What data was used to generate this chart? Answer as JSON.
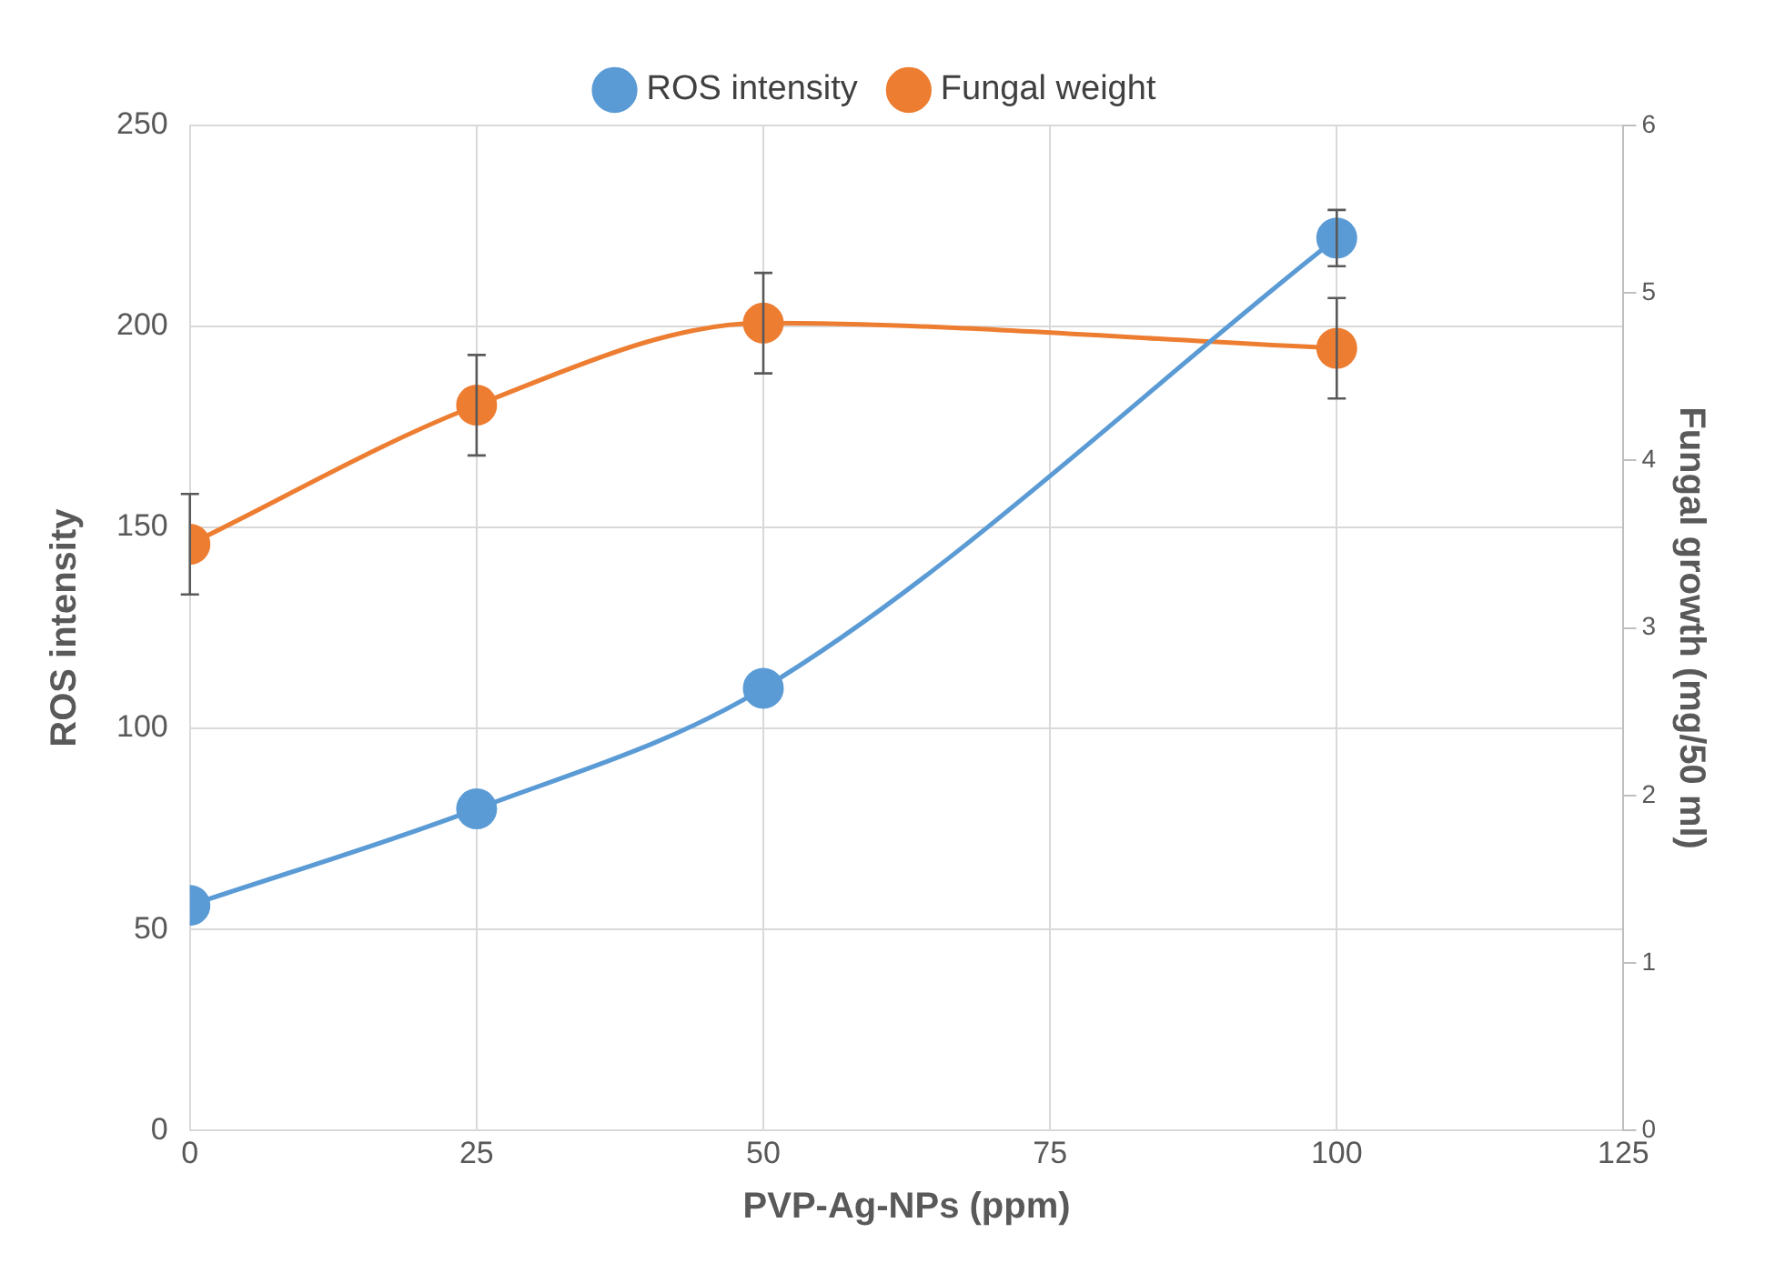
{
  "chart_data": {
    "type": "line",
    "xlabel": "PVP-Ag-NPs (ppm)",
    "ylabel": "ROS intensity",
    "y2label": "Fungal growth (mg/50 ml)",
    "x": [
      0,
      25,
      50,
      100
    ],
    "xlim": [
      0,
      125
    ],
    "xticks": [
      0,
      25,
      50,
      75,
      100,
      125
    ],
    "ylim": [
      0,
      250
    ],
    "yticks": [
      0,
      50,
      100,
      150,
      200,
      250
    ],
    "y2lim": [
      0,
      6
    ],
    "y2ticks": [
      0,
      1,
      2,
      3,
      4,
      5,
      6
    ],
    "series": [
      {
        "name": "ROS intensity",
        "color": "#5b9bd5",
        "values": [
          56,
          80,
          110,
          222
        ],
        "errors": [
          null,
          null,
          null,
          7
        ]
      },
      {
        "name": "Fungal weight",
        "color": "#ed7d31",
        "axis": "y2",
        "values": [
          3.5,
          4.33,
          4.82,
          4.67
        ],
        "errors": [
          0.3,
          0.3,
          0.3,
          0.3
        ]
      }
    ],
    "grid": true,
    "legend": "top",
    "marker": "circle",
    "line_style": "solid"
  }
}
